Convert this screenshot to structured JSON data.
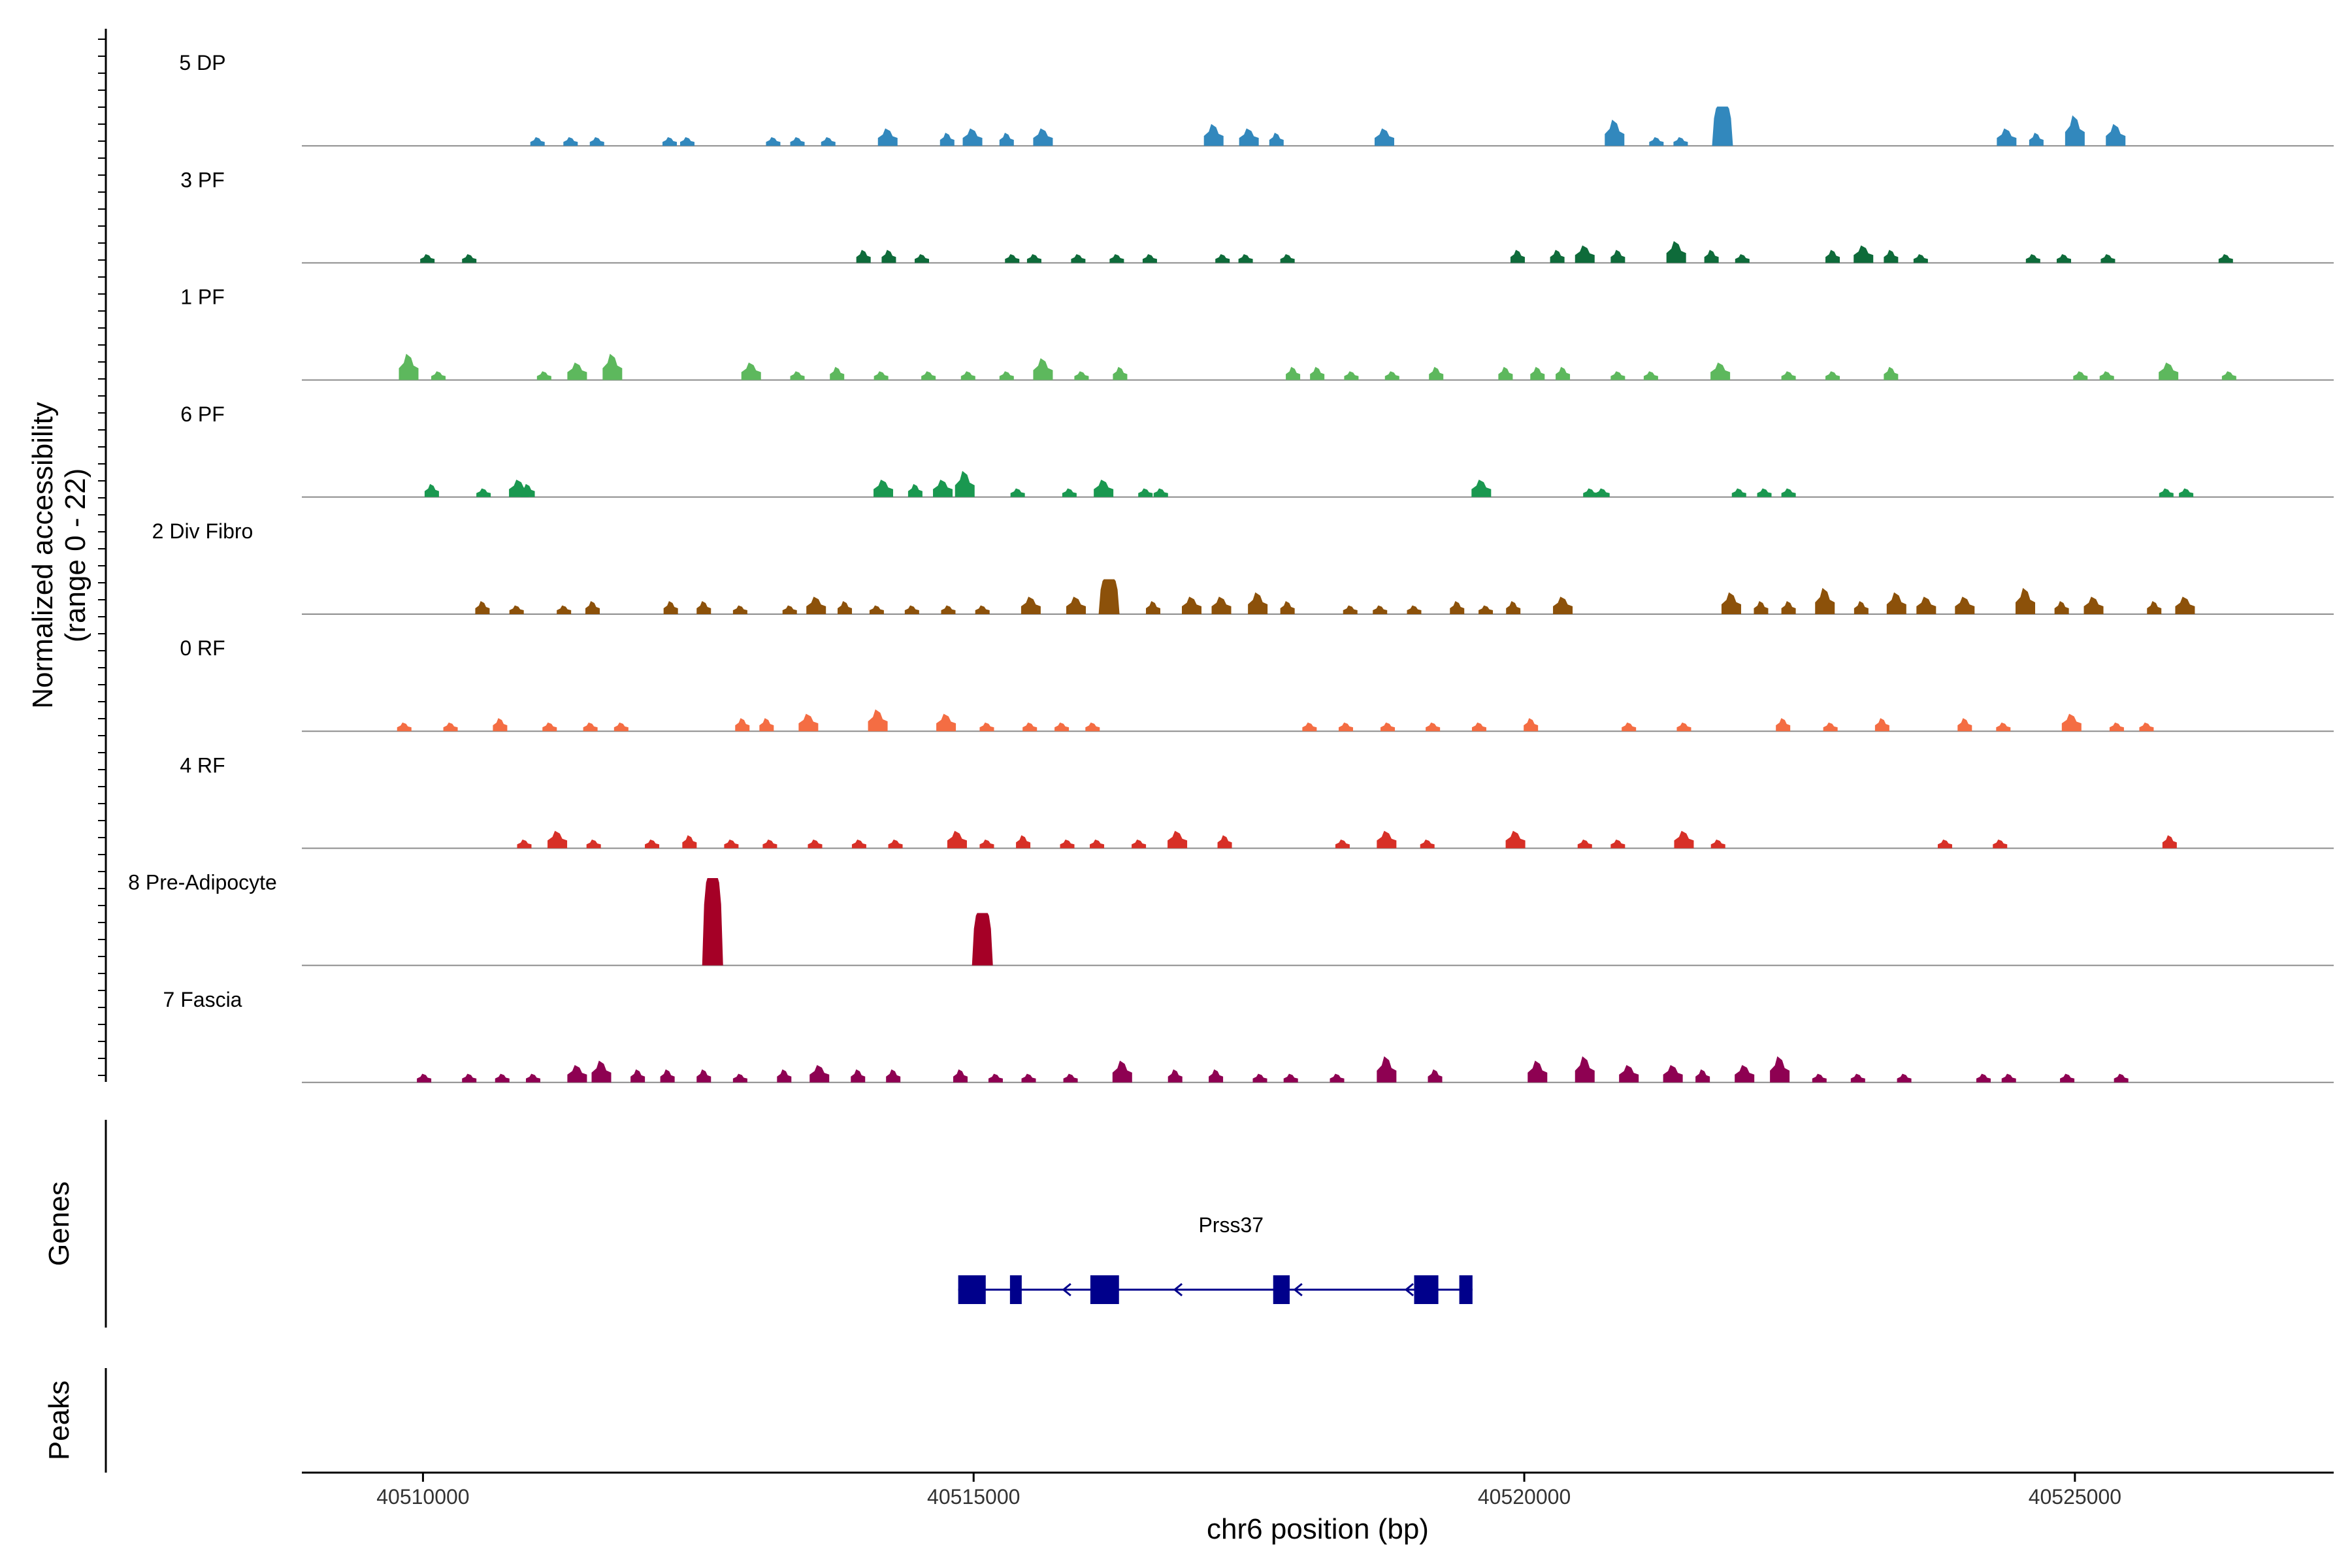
{
  "chart_data": {
    "type": "area",
    "title": "",
    "xlabel": "chr6 position (bp)",
    "ylabel_line1": "Normalized accessibility",
    "ylabel_line2": "(range 0 - 22)",
    "ylim": [
      0,
      22
    ],
    "xlim": [
      40508900,
      40527350
    ],
    "x_ticks": [
      40510000,
      40515000,
      40520000,
      40525000
    ],
    "x_tick_labels": [
      "40510000",
      "40515000",
      "40520000",
      "40525000"
    ],
    "panel_labels": {
      "genes": "Genes",
      "peaks": "Peaks"
    },
    "tracks": [
      {
        "name": "5 DP",
        "color": "#3288BD",
        "peaks": [
          [
            40511040,
            2
          ],
          [
            40511340,
            2
          ],
          [
            40511580,
            2
          ],
          [
            40512240,
            2
          ],
          [
            40512400,
            2
          ],
          [
            40513180,
            2
          ],
          [
            40513400,
            2
          ],
          [
            40513680,
            2
          ],
          [
            40514220,
            4
          ],
          [
            40514760,
            3
          ],
          [
            40514990,
            4
          ],
          [
            40515300,
            3
          ],
          [
            40515630,
            4
          ],
          [
            40517180,
            5
          ],
          [
            40517500,
            4
          ],
          [
            40517750,
            3
          ],
          [
            40518730,
            4
          ],
          [
            40520820,
            6
          ],
          [
            40521200,
            2
          ],
          [
            40521420,
            2
          ],
          [
            40521800,
            9
          ],
          [
            40524380,
            4
          ],
          [
            40524650,
            3
          ],
          [
            40525000,
            7
          ],
          [
            40525370,
            5
          ]
        ]
      },
      {
        "name": "3 PF",
        "color": "#0E6B3A",
        "peaks": [
          [
            40510040,
            2
          ],
          [
            40510420,
            2
          ],
          [
            40514000,
            3
          ],
          [
            40514230,
            3
          ],
          [
            40514530,
            2
          ],
          [
            40515350,
            2
          ],
          [
            40515550,
            2
          ],
          [
            40515950,
            2
          ],
          [
            40516300,
            2
          ],
          [
            40516600,
            2
          ],
          [
            40517260,
            2
          ],
          [
            40517470,
            2
          ],
          [
            40517850,
            2
          ],
          [
            40519940,
            3
          ],
          [
            40520300,
            3
          ],
          [
            40520550,
            4
          ],
          [
            40520850,
            3
          ],
          [
            40521380,
            5
          ],
          [
            40521700,
            3
          ],
          [
            40521980,
            2
          ],
          [
            40522800,
            3
          ],
          [
            40523080,
            4
          ],
          [
            40523330,
            3
          ],
          [
            40523600,
            2
          ],
          [
            40524620,
            2
          ],
          [
            40524900,
            2
          ],
          [
            40525300,
            2
          ],
          [
            40526370,
            2
          ]
        ]
      },
      {
        "name": "1 PF",
        "color": "#5DB85D",
        "peaks": [
          [
            40509870,
            6
          ],
          [
            40510140,
            2
          ],
          [
            40511100,
            2
          ],
          [
            40511400,
            4
          ],
          [
            40511720,
            6
          ],
          [
            40512980,
            4
          ],
          [
            40513400,
            2
          ],
          [
            40513760,
            3
          ],
          [
            40514160,
            2
          ],
          [
            40514590,
            2
          ],
          [
            40514950,
            2
          ],
          [
            40515300,
            2
          ],
          [
            40515630,
            5
          ],
          [
            40515980,
            2
          ],
          [
            40516330,
            3
          ],
          [
            40517900,
            3
          ],
          [
            40518120,
            3
          ],
          [
            40518430,
            2
          ],
          [
            40518800,
            2
          ],
          [
            40519200,
            3
          ],
          [
            40519830,
            3
          ],
          [
            40520120,
            3
          ],
          [
            40520350,
            3
          ],
          [
            40520850,
            2
          ],
          [
            40521150,
            2
          ],
          [
            40521780,
            4
          ],
          [
            40522400,
            2
          ],
          [
            40522800,
            2
          ],
          [
            40523330,
            3
          ],
          [
            40525050,
            2
          ],
          [
            40525290,
            2
          ],
          [
            40525850,
            4
          ],
          [
            40526400,
            2
          ]
        ]
      },
      {
        "name": "6 PF",
        "color": "#1A9850",
        "peaks": [
          [
            40510080,
            3
          ],
          [
            40510550,
            2
          ],
          [
            40510870,
            4
          ],
          [
            40510950,
            3
          ],
          [
            40514180,
            4
          ],
          [
            40514470,
            3
          ],
          [
            40514720,
            4
          ],
          [
            40514920,
            6
          ],
          [
            40515400,
            2
          ],
          [
            40515870,
            2
          ],
          [
            40516180,
            4
          ],
          [
            40516560,
            2
          ],
          [
            40516700,
            2
          ],
          [
            40519610,
            4
          ],
          [
            40520600,
            2
          ],
          [
            40520710,
            2
          ],
          [
            40521950,
            2
          ],
          [
            40522180,
            2
          ],
          [
            40522400,
            2
          ],
          [
            40525830,
            2
          ],
          [
            40526010,
            2
          ]
        ]
      },
      {
        "name": "2 Div Fibro",
        "color": "#8C510A",
        "peaks": [
          [
            40510540,
            3
          ],
          [
            40510850,
            2
          ],
          [
            40511280,
            2
          ],
          [
            40511540,
            3
          ],
          [
            40512250,
            3
          ],
          [
            40512550,
            3
          ],
          [
            40512880,
            2
          ],
          [
            40513330,
            2
          ],
          [
            40513570,
            4
          ],
          [
            40513830,
            3
          ],
          [
            40514120,
            2
          ],
          [
            40514440,
            2
          ],
          [
            40514770,
            2
          ],
          [
            40515080,
            2
          ],
          [
            40515520,
            4
          ],
          [
            40515930,
            4
          ],
          [
            40516230,
            8
          ],
          [
            40516630,
            3
          ],
          [
            40516980,
            4
          ],
          [
            40517250,
            4
          ],
          [
            40517580,
            5
          ],
          [
            40517850,
            3
          ],
          [
            40518420,
            2
          ],
          [
            40518690,
            2
          ],
          [
            40519000,
            2
          ],
          [
            40519390,
            3
          ],
          [
            40519650,
            2
          ],
          [
            40519900,
            3
          ],
          [
            40520350,
            4
          ],
          [
            40521880,
            5
          ],
          [
            40522150,
            3
          ],
          [
            40522400,
            3
          ],
          [
            40522730,
            6
          ],
          [
            40523060,
            3
          ],
          [
            40523380,
            5
          ],
          [
            40523650,
            4
          ],
          [
            40524000,
            4
          ],
          [
            40524550,
            6
          ],
          [
            40524880,
            3
          ],
          [
            40525170,
            4
          ],
          [
            40525720,
            3
          ],
          [
            40526000,
            4
          ]
        ]
      },
      {
        "name": "0 RF",
        "color": "#F46D43",
        "peaks": [
          [
            40509830,
            2
          ],
          [
            40510250,
            2
          ],
          [
            40510700,
            3
          ],
          [
            40511150,
            2
          ],
          [
            40511520,
            2
          ],
          [
            40511800,
            2
          ],
          [
            40512900,
            3
          ],
          [
            40513120,
            3
          ],
          [
            40513500,
            4
          ],
          [
            40514130,
            5
          ],
          [
            40514750,
            4
          ],
          [
            40515120,
            2
          ],
          [
            40515510,
            2
          ],
          [
            40515800,
            2
          ],
          [
            40516080,
            2
          ],
          [
            40518050,
            2
          ],
          [
            40518380,
            2
          ],
          [
            40518760,
            2
          ],
          [
            40519170,
            2
          ],
          [
            40519590,
            2
          ],
          [
            40520060,
            3
          ],
          [
            40520950,
            2
          ],
          [
            40521450,
            2
          ],
          [
            40522350,
            3
          ],
          [
            40522780,
            2
          ],
          [
            40523250,
            3
          ],
          [
            40524000,
            3
          ],
          [
            40524350,
            2
          ],
          [
            40524970,
            4
          ],
          [
            40525380,
            2
          ],
          [
            40525650,
            2
          ]
        ]
      },
      {
        "name": "4 RF",
        "color": "#D73027",
        "peaks": [
          [
            40510920,
            2
          ],
          [
            40511220,
            4
          ],
          [
            40511550,
            2
          ],
          [
            40512080,
            2
          ],
          [
            40512420,
            3
          ],
          [
            40512800,
            2
          ],
          [
            40513150,
            2
          ],
          [
            40513560,
            2
          ],
          [
            40513960,
            2
          ],
          [
            40514290,
            2
          ],
          [
            40514850,
            4
          ],
          [
            40515120,
            2
          ],
          [
            40515450,
            3
          ],
          [
            40515850,
            2
          ],
          [
            40516120,
            2
          ],
          [
            40516500,
            2
          ],
          [
            40516850,
            4
          ],
          [
            40517280,
            3
          ],
          [
            40518350,
            2
          ],
          [
            40518750,
            4
          ],
          [
            40519120,
            2
          ],
          [
            40519920,
            4
          ],
          [
            40520550,
            2
          ],
          [
            40520850,
            2
          ],
          [
            40521450,
            4
          ],
          [
            40521760,
            2
          ],
          [
            40523820,
            2
          ],
          [
            40524320,
            2
          ],
          [
            40525860,
            3
          ]
        ]
      },
      {
        "name": "8 Pre-Adipocyte",
        "color": "#A50026",
        "peaks": [
          [
            40512630,
            20
          ],
          [
            40515080,
            12
          ]
        ]
      },
      {
        "name": "7 Fascia",
        "color": "#8E0152",
        "peaks": [
          [
            40510010,
            2
          ],
          [
            40510420,
            2
          ],
          [
            40510720,
            2
          ],
          [
            40511000,
            2
          ],
          [
            40511400,
            4
          ],
          [
            40511620,
            5
          ],
          [
            40511950,
            3
          ],
          [
            40512220,
            3
          ],
          [
            40512550,
            3
          ],
          [
            40512880,
            2
          ],
          [
            40513280,
            3
          ],
          [
            40513600,
            4
          ],
          [
            40513950,
            3
          ],
          [
            40514270,
            3
          ],
          [
            40514880,
            3
          ],
          [
            40515200,
            2
          ],
          [
            40515500,
            2
          ],
          [
            40515880,
            2
          ],
          [
            40516350,
            5
          ],
          [
            40516830,
            3
          ],
          [
            40517200,
            3
          ],
          [
            40517600,
            2
          ],
          [
            40517880,
            2
          ],
          [
            40518300,
            2
          ],
          [
            40518750,
            6
          ],
          [
            40519190,
            3
          ],
          [
            40520120,
            5
          ],
          [
            40520550,
            6
          ],
          [
            40520950,
            4
          ],
          [
            40521350,
            4
          ],
          [
            40521620,
            3
          ],
          [
            40522000,
            4
          ],
          [
            40522320,
            6
          ],
          [
            40522680,
            2
          ],
          [
            40523030,
            2
          ],
          [
            40523450,
            2
          ],
          [
            40524170,
            2
          ],
          [
            40524400,
            2
          ],
          [
            40524930,
            2
          ],
          [
            40525420,
            2
          ]
        ]
      }
    ],
    "gene": {
      "name": "Prss37",
      "strand": "-",
      "color": "#00008B",
      "start": 40514860,
      "end": 40519530,
      "exons": [
        [
          40514860,
          40515110
        ],
        [
          40515330,
          40515430
        ],
        [
          40516060,
          40516320
        ],
        [
          40517720,
          40517870
        ],
        [
          40519000,
          40519220
        ],
        [
          40519410,
          40519530
        ]
      ],
      "arrows": [
        40515840,
        40516850,
        40517940,
        40518950
      ]
    },
    "peaks_panel": []
  }
}
